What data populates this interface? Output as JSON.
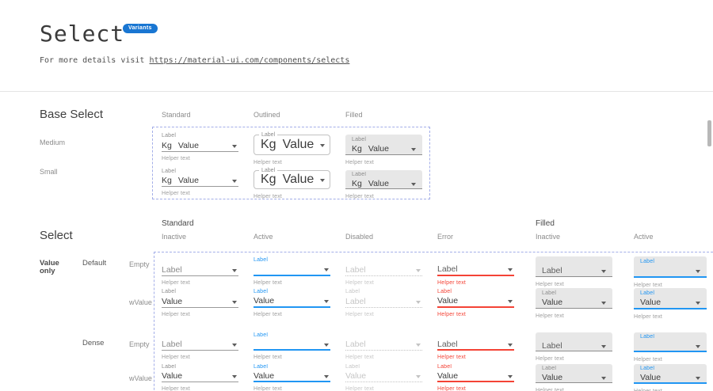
{
  "header": {
    "title": "Select",
    "badge": "Variants",
    "intro_prefix": "For more details visit ",
    "intro_link": "https://material-ui.com/components/selects"
  },
  "colors": {
    "accent": "#2196f3",
    "badge": "#1976d2",
    "error": "#f44336",
    "dashed": "#a3aee8",
    "filled_bg": "#e7e7e7"
  },
  "base_select": {
    "heading": "Base Select",
    "column_headers": [
      "Standard",
      "Outlined",
      "Filled"
    ],
    "row_labels": [
      "Medium",
      "Small"
    ],
    "cells": [
      {
        "variant": "standard",
        "label": "Label",
        "adornment": "Kg",
        "value": "Value",
        "helper": "Helper text"
      },
      {
        "variant": "outlined",
        "label": "Label",
        "adornment": "Kg",
        "value": "Value",
        "helper": "Helper text"
      },
      {
        "variant": "filled",
        "label": "Label",
        "adornment": "Kg",
        "value": "Value",
        "helper": "Helper text"
      },
      {
        "variant": "standard",
        "label": "Label",
        "adornment": "Kg",
        "value": "Value",
        "helper": "Helper text"
      },
      {
        "variant": "outlined",
        "label": "Label",
        "adornment": "Kg",
        "value": "Value",
        "helper": "Helper text"
      },
      {
        "variant": "filled",
        "label": "Label",
        "adornment": "Kg",
        "value": "Value",
        "helper": "Helper text"
      }
    ]
  },
  "select_matrix": {
    "heading": "Select",
    "group_headers": [
      {
        "label": "Standard",
        "col": 0
      },
      {
        "label": "Filled",
        "col": 4
      }
    ],
    "column_headers": [
      "Inactive",
      "Active",
      "Disabled",
      "Error",
      "Inactive",
      "Active"
    ],
    "row_group_label": "Value only",
    "subgroup_labels": [
      "Default",
      "Dense"
    ],
    "row_labels": [
      "Empty",
      "wValue",
      "Empty",
      "wValue"
    ],
    "rows": [
      [
        {
          "variant": "standard",
          "state": "inactive",
          "label": "",
          "value": "Label",
          "value_tone": "gray",
          "helper": "Helper text",
          "helper_tone": "gray"
        },
        {
          "variant": "standard",
          "state": "active",
          "label": "Label",
          "value": "",
          "value_tone": "dark",
          "helper": "Helper text",
          "helper_tone": "gray"
        },
        {
          "variant": "standard",
          "state": "disabled",
          "label": "",
          "value": "Label",
          "value_tone": "light",
          "helper": "Helper text",
          "helper_tone": "light"
        },
        {
          "variant": "standard",
          "state": "error",
          "label": "",
          "value": "Label",
          "value_tone": "mid",
          "helper": "Helper text",
          "helper_tone": "red"
        },
        {
          "variant": "filled",
          "state": "inactive",
          "label": "",
          "value": "Label",
          "value_tone": "mid",
          "helper": "Helper text",
          "helper_tone": "gray"
        },
        {
          "variant": "filled",
          "state": "active",
          "label": "Label",
          "value": "",
          "value_tone": "dark",
          "helper": "Helper text",
          "helper_tone": "gray"
        }
      ],
      [
        {
          "variant": "standard",
          "state": "inactive",
          "label": "Label",
          "value": "Value",
          "value_tone": "dark",
          "helper": "Helper text",
          "helper_tone": "gray"
        },
        {
          "variant": "standard",
          "state": "active",
          "label": "Label",
          "value": "Value",
          "value_tone": "dark",
          "helper": "Helper text",
          "helper_tone": "gray"
        },
        {
          "variant": "standard",
          "state": "disabled",
          "label": "Label",
          "value": "Label",
          "value_tone": "light",
          "helper": "Helper text",
          "helper_tone": "light"
        },
        {
          "variant": "standard",
          "state": "error",
          "label": "Label",
          "value": "Value",
          "value_tone": "dark",
          "helper": "Helper text",
          "helper_tone": "red"
        },
        {
          "variant": "filled",
          "state": "inactive",
          "label": "Label",
          "value": "Value",
          "value_tone": "dark",
          "helper": "Helper text",
          "helper_tone": "gray"
        },
        {
          "variant": "filled",
          "state": "active",
          "label": "Label",
          "value": "Value",
          "value_tone": "dark",
          "helper": "Helper text",
          "helper_tone": "gray"
        }
      ],
      [
        {
          "variant": "standard",
          "state": "inactive",
          "label": "",
          "value": "Label",
          "value_tone": "gray",
          "helper": "Helper text",
          "helper_tone": "gray"
        },
        {
          "variant": "standard",
          "state": "active",
          "label": "Label",
          "value": "",
          "value_tone": "dark",
          "helper": "Helper text",
          "helper_tone": "gray"
        },
        {
          "variant": "standard",
          "state": "disabled",
          "label": "",
          "value": "Label",
          "value_tone": "light",
          "helper": "Helper text",
          "helper_tone": "light"
        },
        {
          "variant": "standard",
          "state": "error",
          "label": "",
          "value": "Label",
          "value_tone": "mid",
          "helper": "Helper text",
          "helper_tone": "red"
        },
        {
          "variant": "filled",
          "state": "inactive",
          "label": "",
          "value": "Label",
          "value_tone": "mid",
          "helper": "Helper text",
          "helper_tone": "gray"
        },
        {
          "variant": "filled",
          "state": "active",
          "label": "Label",
          "value": "",
          "value_tone": "dark",
          "helper": "Helper text",
          "helper_tone": "gray"
        }
      ],
      [
        {
          "variant": "standard",
          "state": "inactive",
          "label": "Label",
          "value": "Value",
          "value_tone": "dark",
          "helper": "Helper text",
          "helper_tone": "gray"
        },
        {
          "variant": "standard",
          "state": "active",
          "label": "Label",
          "value": "Value",
          "value_tone": "dark",
          "helper": "Helper text",
          "helper_tone": "gray"
        },
        {
          "variant": "standard",
          "state": "disabled",
          "label": "Label",
          "value": "Value",
          "value_tone": "light",
          "helper": "Helper text",
          "helper_tone": "light"
        },
        {
          "variant": "standard",
          "state": "error",
          "label": "Label",
          "value": "Value",
          "value_tone": "dark",
          "helper": "Helper text",
          "helper_tone": "red"
        },
        {
          "variant": "filled",
          "state": "inactive",
          "label": "Label",
          "value": "Value",
          "value_tone": "dark",
          "helper": "Helper text",
          "helper_tone": "gray"
        },
        {
          "variant": "filled",
          "state": "active",
          "label": "Label",
          "value": "Value",
          "value_tone": "dark",
          "helper": "Helper text",
          "helper_tone": "gray"
        }
      ]
    ]
  }
}
